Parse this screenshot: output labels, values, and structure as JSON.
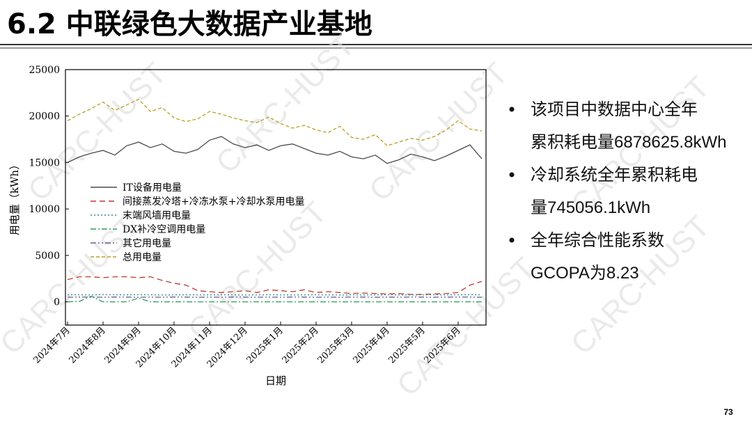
{
  "header": {
    "title": "6.2 中联绿色大数据产业基地"
  },
  "watermark": "CARC-HUST",
  "bullets": [
    "该项目中数据中心全年累积耗电量6878625.8kWh",
    "冷却系统全年累积耗电量745056.1kWh",
    "全年综合性能系数GCOPA为8.23"
  ],
  "page_number": "73",
  "chart_data": {
    "type": "line",
    "x_label": "日期",
    "y_label": "用电量（kWh）",
    "categories": [
      "2024年7月",
      null,
      null,
      "2024年8月",
      null,
      null,
      "2024年9月",
      null,
      null,
      "2024年10月",
      null,
      null,
      "2024年11月",
      null,
      null,
      "2024年12月",
      null,
      null,
      "2025年1月",
      null,
      null,
      "2025年2月",
      null,
      null,
      "2025年3月",
      null,
      null,
      "2025年4月",
      null,
      null,
      "2025年5月",
      null,
      null,
      "2025年6月",
      null,
      null
    ],
    "ylim": [
      -2500,
      25000
    ],
    "yticks": [
      0,
      5000,
      10000,
      15000,
      20000,
      25000
    ],
    "legend": "upper left",
    "series": [
      {
        "name": "IT设备用电量",
        "color": "#4a4a4a",
        "dash": "",
        "values": [
          15000,
          15600,
          16000,
          16300,
          15800,
          16800,
          17200,
          16600,
          17000,
          16200,
          16000,
          16400,
          17400,
          17800,
          17000,
          16600,
          16900,
          16300,
          16800,
          17000,
          16500,
          16000,
          15800,
          16200,
          15600,
          15400,
          15800,
          14900,
          15300,
          15900,
          15600,
          15200,
          15700,
          16300,
          16900,
          15400
        ]
      },
      {
        "name": "间接蒸发冷塔+冷冻水泵+冷却水泵用电量",
        "color": "#c0392b",
        "dash": "8 5",
        "values": [
          2400,
          2700,
          2700,
          2600,
          2700,
          2700,
          2600,
          2700,
          2300,
          2000,
          1800,
          1200,
          1100,
          1000,
          1100,
          1200,
          1000,
          1300,
          1200,
          1100,
          1300,
          1000,
          1100,
          1000,
          900,
          950,
          900,
          850,
          900,
          800,
          800,
          850,
          900,
          1000,
          1800,
          2200
        ]
      },
      {
        "name": "末端风墙用电量",
        "color": "#2a8a8a",
        "dash": "2 3",
        "values": [
          750,
          760,
          740,
          780,
          760,
          750,
          770,
          760,
          740,
          750,
          760,
          750,
          740,
          760,
          750,
          740,
          750,
          760,
          750,
          740,
          750,
          760,
          750,
          740,
          750,
          740,
          750,
          760,
          750,
          740,
          750,
          760,
          750,
          760,
          770,
          760
        ]
      },
      {
        "name": "DX补冷空调用电量",
        "color": "#2e9b5a",
        "dash": "8 3 2 3",
        "values": [
          0,
          50,
          600,
          0,
          0,
          0,
          400,
          0,
          0,
          0,
          0,
          0,
          0,
          0,
          0,
          0,
          0,
          0,
          0,
          0,
          0,
          0,
          0,
          0,
          0,
          0,
          0,
          0,
          0,
          0,
          0,
          0,
          0,
          0,
          0,
          0
        ]
      },
      {
        "name": "其它用电量",
        "color": "#6a5a9a",
        "dash": "8 3 2 3 2 3",
        "values": [
          500,
          520,
          510,
          500,
          520,
          510,
          500,
          510,
          500,
          520,
          510,
          500,
          510,
          500,
          520,
          510,
          500,
          510,
          500,
          520,
          510,
          500,
          510,
          500,
          520,
          510,
          500,
          510,
          500,
          520,
          510,
          500,
          510,
          520,
          510,
          500
        ]
      },
      {
        "name": "总用电量",
        "color": "#b8a020",
        "dash": "5 3",
        "values": [
          19500,
          20200,
          20800,
          21500,
          20600,
          21200,
          21800,
          20500,
          20900,
          19800,
          19400,
          19700,
          20500,
          20200,
          19800,
          19500,
          19300,
          19900,
          19200,
          18700,
          19000,
          18500,
          18200,
          18900,
          17700,
          17500,
          18000,
          16800,
          17200,
          17600,
          17400,
          17800,
          18500,
          19500,
          18600,
          18400
        ]
      }
    ]
  }
}
